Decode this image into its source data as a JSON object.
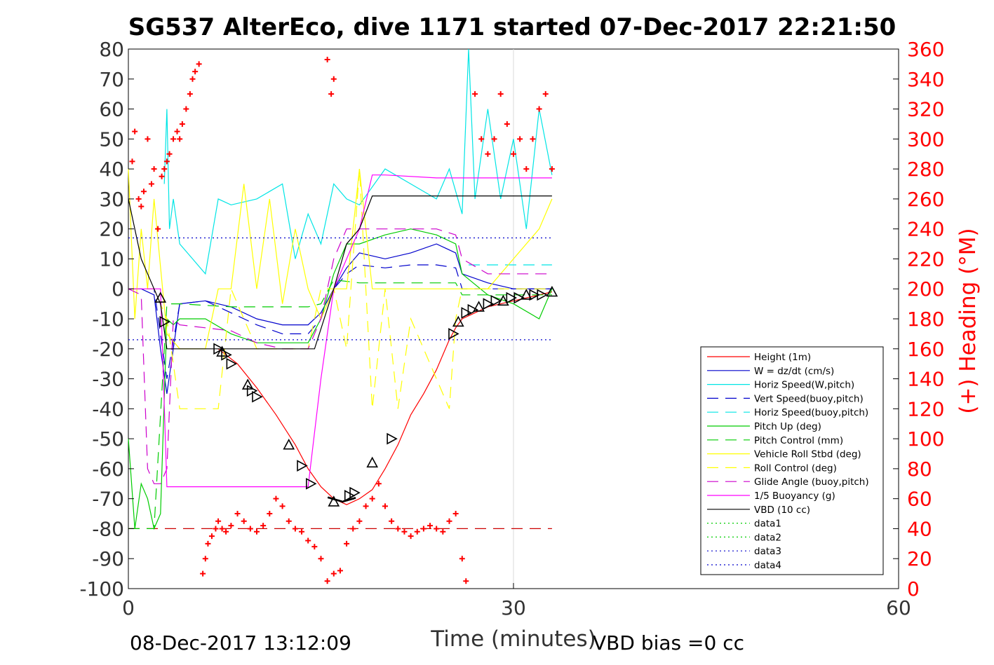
{
  "chart_data": {
    "type": "line",
    "title": "SG537 AlterEco, dive 1171 started 07-Dec-2017 22:21:50",
    "xlabel": "Time (minutes)",
    "ylabel": "",
    "y2label": "(+) Heading (°M)",
    "xlim": [
      0,
      60
    ],
    "ylim": [
      -100,
      80
    ],
    "y2lim": [
      0,
      360
    ],
    "xticks": [
      0,
      30,
      60
    ],
    "yticks": [
      -100,
      -90,
      -80,
      -70,
      -60,
      -50,
      -40,
      -30,
      -20,
      -10,
      0,
      10,
      20,
      30,
      40,
      50,
      60,
      70,
      80
    ],
    "y2ticks": [
      0,
      20,
      40,
      60,
      80,
      100,
      120,
      140,
      160,
      180,
      200,
      220,
      240,
      260,
      280,
      300,
      320,
      340,
      360
    ],
    "grid": "x=30 only",
    "legend_position": "lower-right",
    "footer_left": "08-Dec-2017 13:12:09",
    "footer_right": "VBD bias =0 cc",
    "colors": {
      "axis": "#000000",
      "heading_axis": "#ff0000"
    },
    "series": [
      {
        "name": "Height (1m)",
        "color": "#ff0000",
        "dash": "solid",
        "x": [
          7.0,
          8.5,
          10.0,
          11.5,
          13.0,
          14.0,
          15.0,
          16.0,
          17.0,
          18.0,
          19.0,
          20.0,
          21.0,
          22.0,
          23.0,
          24.0,
          25.0,
          25.5,
          26.0,
          27.0,
          28.0,
          29.0,
          30.0,
          31.0,
          32.0,
          33.0
        ],
        "y": [
          -20,
          -25,
          -33,
          -42,
          -52,
          -60,
          -66,
          -70,
          -72,
          -70,
          -67,
          -60,
          -52,
          -42,
          -35,
          -27,
          -17,
          -13,
          -10,
          -8,
          -6,
          -5,
          -4,
          -3,
          -2,
          -1
        ]
      },
      {
        "name": "W = dz/dt (cm/s)",
        "color": "#0000cc",
        "dash": "solid",
        "x": [
          0,
          1,
          2,
          2.5,
          3.0,
          4.0,
          6.0,
          8.0,
          10.0,
          12.0,
          14.0,
          15.0,
          16.0,
          17.0,
          18.0,
          20.0,
          22.0,
          24.0,
          25.5,
          26.0,
          28.0,
          30.0,
          32.0,
          33.0
        ],
        "y": [
          0,
          0,
          -2,
          -20,
          -35,
          -5,
          -4,
          -6,
          -10,
          -12,
          -12,
          -8,
          0,
          7,
          12,
          10,
          12,
          15,
          12,
          5,
          2,
          0,
          0,
          0
        ]
      },
      {
        "name": "Horiz Speed(W,pitch)",
        "color": "#00e5e5",
        "dash": "solid",
        "x": [
          2.8,
          3.0,
          3.2,
          3.5,
          4.0,
          5.0,
          6.0,
          7.0,
          8.0,
          10.0,
          12.0,
          13.0,
          14.0,
          15.0,
          16.0,
          17.0,
          18.0,
          20.0,
          22.0,
          24.0,
          25.0,
          26.0,
          26.5,
          27.0,
          28.0,
          29.0,
          30.0,
          31.0,
          32.0,
          33.0
        ],
        "y": [
          35,
          60,
          20,
          30,
          15,
          10,
          5,
          30,
          28,
          30,
          35,
          10,
          25,
          15,
          35,
          30,
          28,
          40,
          35,
          30,
          40,
          25,
          80,
          30,
          60,
          30,
          50,
          20,
          60,
          38
        ]
      },
      {
        "name": "Vert Speed(buoy,pitch)",
        "color": "#0000cc",
        "dash": "long",
        "x": [
          0,
          2,
          3,
          4,
          6,
          8,
          10,
          12,
          14,
          15,
          16,
          17,
          18,
          20,
          22,
          24,
          25.5,
          26,
          28,
          30,
          32,
          33
        ],
        "y": [
          0,
          0,
          -30,
          -5,
          -4,
          -8,
          -12,
          -15,
          -15,
          -10,
          0,
          5,
          8,
          7,
          8,
          8,
          7,
          0,
          0,
          0,
          0,
          0
        ]
      },
      {
        "name": "Horiz Speed(buoy,pitch)",
        "color": "#00e5e5",
        "dash": "long",
        "x": [
          26.5,
          27.0,
          28.0,
          30.0,
          32.0,
          33.0
        ],
        "y": [
          8,
          8,
          8,
          8,
          8,
          8
        ]
      },
      {
        "name": "Pitch Up (deg)",
        "color": "#00cc00",
        "dash": "solid",
        "x": [
          0,
          0.5,
          1.0,
          1.5,
          2.0,
          2.5,
          3.0,
          3.5,
          4.0,
          6.0,
          8.0,
          10.0,
          12.0,
          14.0,
          15.0,
          16.0,
          17.0,
          18.0,
          20.0,
          22.0,
          24.0,
          25.5,
          26.0,
          28.0,
          30.0,
          32.0,
          33.0
        ],
        "y": [
          -50,
          -80,
          -65,
          -70,
          -80,
          -75,
          -10,
          -12,
          -10,
          -10,
          -15,
          -18,
          -18,
          -18,
          -10,
          5,
          15,
          15,
          18,
          20,
          18,
          15,
          5,
          -2,
          -5,
          -10,
          0
        ]
      },
      {
        "name": "Pitch Control (mm)",
        "color": "#00cc00",
        "dash": "long",
        "x": [
          0,
          2,
          3,
          4,
          8,
          14,
          15,
          16,
          18,
          20,
          24,
          25.5,
          26,
          33
        ],
        "y": [
          -80,
          -80,
          -5,
          -5,
          -6,
          -6,
          -5,
          3,
          2,
          2,
          2,
          2,
          -2,
          -2
        ]
      },
      {
        "name": "Vehicle Roll Stbd (deg)",
        "color": "#ffff00",
        "dash": "solid",
        "x": [
          0,
          0.5,
          1.0,
          1.5,
          2.0,
          3.0,
          4.0,
          6.0,
          7.0,
          8.0,
          9.0,
          10.0,
          11.0,
          12.0,
          13.0,
          14.0,
          15.0,
          16.0,
          17.0,
          18.0,
          19.0,
          20.0,
          22.0,
          24.0,
          25.0,
          26.0,
          28.0,
          30.0,
          32.0,
          33.0
        ],
        "y": [
          40,
          -10,
          20,
          0,
          30,
          -15,
          -20,
          -20,
          0,
          0,
          35,
          0,
          30,
          -5,
          20,
          0,
          -10,
          0,
          0,
          40,
          0,
          0,
          0,
          0,
          0,
          0,
          0,
          10,
          20,
          30
        ]
      },
      {
        "name": "Roll Control (deg)",
        "color": "#ffff00",
        "dash": "long",
        "x": [
          0,
          2,
          3,
          4,
          6,
          7,
          8,
          10,
          14,
          15,
          16,
          17,
          18,
          19,
          20,
          21,
          22,
          24,
          25,
          25.5,
          26,
          33
        ],
        "y": [
          0,
          0,
          -10,
          -40,
          -40,
          -40,
          0,
          -20,
          -20,
          0,
          0,
          -20,
          40,
          -40,
          0,
          -40,
          -10,
          -30,
          -40,
          -10,
          0,
          0
        ]
      },
      {
        "name": "Glide Angle (buoy,pitch)",
        "color": "#cc00cc",
        "dash": "long",
        "x": [
          0,
          1,
          1.5,
          2.0,
          2.5,
          3.0,
          3.5,
          4,
          6,
          8,
          10,
          12,
          14,
          15,
          16,
          17,
          18,
          20,
          22,
          24,
          25.5,
          26,
          28,
          30,
          32,
          33
        ],
        "y": [
          0,
          -2,
          -60,
          -65,
          -65,
          -60,
          -10,
          -12,
          -13,
          -14,
          -18,
          -20,
          -20,
          -10,
          10,
          20,
          20,
          20,
          20,
          20,
          18,
          10,
          5,
          5,
          5,
          5
        ]
      },
      {
        "name": "1/5 Buoyancy (g)",
        "color": "#ff00ff",
        "dash": "solid",
        "x": [
          0,
          2.5,
          3.0,
          4,
          8,
          12,
          14.0,
          15.0,
          16.0,
          18.0,
          19.0,
          20,
          24,
          28,
          33
        ],
        "y": [
          0,
          0,
          -66,
          -66,
          -66,
          -66,
          -66,
          -30,
          0,
          20,
          38,
          38,
          37,
          37,
          37
        ]
      },
      {
        "name": "VBD (10 cc)",
        "color": "#000000",
        "dash": "solid",
        "x": [
          0,
          1.0,
          2.0,
          2.5,
          3.0,
          8,
          12,
          14.5,
          16.0,
          17.0,
          18.0,
          19.0,
          20,
          25,
          30,
          33
        ],
        "y": [
          30,
          10,
          0,
          -5,
          -20,
          -20,
          -20,
          -20,
          0,
          15,
          20,
          31,
          31,
          31,
          31,
          31
        ]
      },
      {
        "name": "data1",
        "color": "#00cc00",
        "dash": "dotted",
        "x": [],
        "y": []
      },
      {
        "name": "data2",
        "color": "#00cc00",
        "dash": "dotted",
        "x": [],
        "y": []
      },
      {
        "name": "data3",
        "color": "#0000cc",
        "dash": "dotted",
        "x": [
          0,
          33
        ],
        "y": [
          17,
          17
        ]
      },
      {
        "name": "data4",
        "color": "#0000cc",
        "dash": "dotted",
        "x": [
          0,
          33
        ],
        "y": [
          -17,
          -17
        ]
      }
    ],
    "extra_lines": [
      {
        "name": "dashed-reference",
        "color": "#cc0000",
        "dash": "long",
        "x": [
          0,
          33
        ],
        "y": [
          -80,
          -80
        ]
      }
    ],
    "heading_points": {
      "name": "Heading",
      "color": "#ff0000",
      "marker": "+",
      "x": [
        0.3,
        0.5,
        0.8,
        1.0,
        1.2,
        1.5,
        1.8,
        2.0,
        2.3,
        2.6,
        2.8,
        3.0,
        3.2,
        3.5,
        3.8,
        4.0,
        4.2,
        4.5,
        4.8,
        5.0,
        5.2,
        5.5,
        5.8,
        6.0,
        6.2,
        6.5,
        6.8,
        7.0,
        7.3,
        7.6,
        8.0,
        8.5,
        9.0,
        9.5,
        10.0,
        10.5,
        11.0,
        11.5,
        12.0,
        12.5,
        13.0,
        13.5,
        14.0,
        14.5,
        15.0,
        15.5,
        16.0,
        16.5,
        17.0,
        17.5,
        18.0,
        18.5,
        19.0,
        19.5,
        20.0,
        20.5,
        21.0,
        21.5,
        22.0,
        22.5,
        23.0,
        23.5,
        24.0,
        24.5,
        25.0,
        25.5,
        26.0,
        26.3,
        27.0,
        27.5,
        28.0,
        28.5,
        29.0,
        29.5,
        30.0,
        30.5,
        31.0,
        31.5,
        32.0,
        32.5,
        33.0,
        15.5,
        16.0,
        15.8
      ],
      "y": [
        285,
        305,
        260,
        255,
        265,
        300,
        270,
        280,
        240,
        275,
        280,
        285,
        290,
        300,
        305,
        300,
        310,
        320,
        330,
        340,
        345,
        350,
        10,
        20,
        30,
        35,
        40,
        45,
        40,
        38,
        42,
        50,
        45,
        40,
        38,
        42,
        50,
        60,
        55,
        45,
        40,
        38,
        32,
        28,
        20,
        5,
        10,
        12,
        30,
        40,
        45,
        55,
        60,
        70,
        55,
        45,
        40,
        38,
        35,
        38,
        40,
        42,
        40,
        38,
        45,
        50,
        20,
        5,
        330,
        300,
        290,
        300,
        330,
        310,
        290,
        300,
        280,
        300,
        320,
        330,
        280,
        353,
        340,
        330
      ]
    },
    "triangle_markers": {
      "name": "Height markers",
      "color": "#000000",
      "x": [
        2.5,
        2.8,
        7.0,
        7.3,
        7.6,
        8.0,
        9.3,
        9.6,
        10.0,
        12.5,
        13.5,
        14.2,
        16.0,
        17.2,
        17.6,
        19.0,
        20.5,
        25.3,
        25.7,
        26.3,
        26.8,
        27.3,
        28.0,
        28.6,
        29.2,
        29.8,
        30.4,
        31.0,
        31.6,
        32.2,
        33.0
      ],
      "y": [
        -3,
        -11,
        -20,
        -21,
        -22,
        -25,
        -32,
        -34,
        -36,
        -52,
        -59,
        -65,
        -71,
        -69,
        -68,
        -58,
        -50,
        -15,
        -11,
        -8,
        -7,
        -6,
        -5,
        -4,
        -4,
        -3,
        -3,
        -2,
        -2,
        -2,
        -1
      ]
    }
  }
}
